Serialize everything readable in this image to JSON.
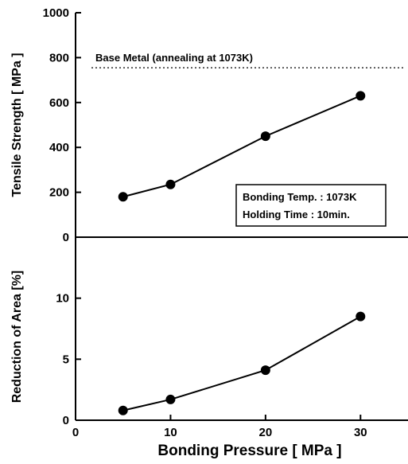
{
  "chart_data": [
    {
      "type": "line",
      "panel": "top",
      "ylabel": "Tensile Strength [ MPa ]",
      "xlim": [
        0,
        35
      ],
      "ylim": [
        0,
        1000
      ],
      "yticks": [
        "0",
        "200",
        "400",
        "600",
        "800",
        "1000"
      ],
      "yticks_values": [
        0,
        200,
        400,
        600,
        800,
        1000
      ],
      "series": [
        {
          "x": [
            5,
            10,
            20,
            30
          ],
          "values": [
            180,
            235,
            450,
            630
          ]
        }
      ],
      "reference_line": {
        "label": "Base Metal (annealing at 1073K)",
        "value": 755,
        "style": "dotted"
      },
      "legend_box": {
        "lines": [
          "Bonding Temp. : 1073K",
          "Holding Time : 10min."
        ],
        "placement": "lower-right"
      },
      "grid": false
    },
    {
      "type": "line",
      "panel": "bottom",
      "ylabel": "Reduction of Area [%]",
      "xlabel": "Bonding Pressure [ MPa ]",
      "xlim": [
        0,
        35
      ],
      "ylim": [
        0,
        15
      ],
      "xticks": [
        "0",
        "10",
        "20",
        "30"
      ],
      "xticks_values": [
        0,
        10,
        20,
        30
      ],
      "yticks": [
        "0",
        "5",
        "10"
      ],
      "yticks_values": [
        0,
        5,
        10
      ],
      "series": [
        {
          "x": [
            5,
            10,
            20,
            30
          ],
          "values": [
            0.8,
            1.7,
            4.1,
            8.5
          ]
        }
      ],
      "grid": false
    }
  ]
}
